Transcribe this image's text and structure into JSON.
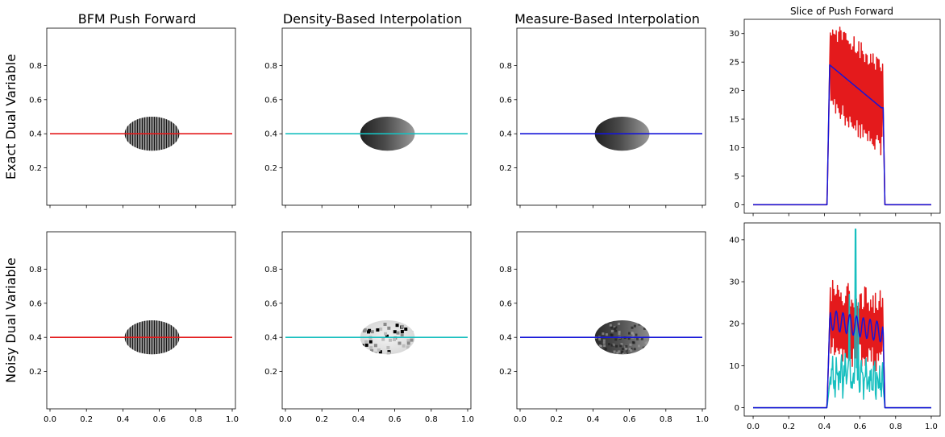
{
  "column_titles": [
    "BFM Push Forward",
    "Density-Based Interpolation",
    "Measure-Based Interpolation",
    "Slice of Push Forward"
  ],
  "row_labels": [
    "Exact Dual Variable",
    "Noisy Dual Variable"
  ],
  "colors": {
    "red": "#e41a1c",
    "cyan": "#17bfbf",
    "blue": "#1515d8"
  },
  "chart_data": [
    {
      "type": "heatmap",
      "title": "BFM Push Forward",
      "row": "Exact Dual Variable",
      "image": "ellipse with dense vertical stripes",
      "xlim": [
        0,
        1
      ],
      "ylim": [
        0,
        1
      ],
      "yticks": [
        "0.2",
        "0.4",
        "0.6",
        "0.8"
      ],
      "line": {
        "color": "red",
        "x": [
          0,
          1
        ],
        "y": [
          0.4,
          0.4
        ]
      }
    },
    {
      "type": "heatmap",
      "title": "Density-Based Interpolation",
      "row": "Exact Dual Variable",
      "image": "smooth gradient ellipse",
      "xlim": [
        0,
        1
      ],
      "ylim": [
        0,
        1
      ],
      "yticks": [
        "0.2",
        "0.4",
        "0.6",
        "0.8"
      ],
      "line": {
        "color": "cyan",
        "x": [
          0,
          1
        ],
        "y": [
          0.4,
          0.4
        ]
      }
    },
    {
      "type": "heatmap",
      "title": "Measure-Based Interpolation",
      "row": "Exact Dual Variable",
      "image": "smooth gradient ellipse",
      "xlim": [
        0,
        1
      ],
      "ylim": [
        0,
        1
      ],
      "yticks": [
        "0.2",
        "0.4",
        "0.6",
        "0.8"
      ],
      "line": {
        "color": "blue",
        "x": [
          0,
          1
        ],
        "y": [
          0.4,
          0.4
        ]
      }
    },
    {
      "type": "line",
      "title": "Slice of Push Forward",
      "row": "Exact Dual Variable",
      "xlim": [
        -0.05,
        1.05
      ],
      "ylim": [
        -1.5,
        32.5
      ],
      "yticks": [
        0,
        5,
        10,
        15,
        20,
        25,
        30
      ],
      "series": [
        {
          "color": "red",
          "kind": "oscillating",
          "envelope_x": [
            0,
            0.415,
            0.43,
            0.72,
            0.73,
            0.74,
            1
          ],
          "envelope_y": [
            0,
            0,
            24.5,
            17,
            17,
            0,
            0
          ]
        },
        {
          "color": "blue",
          "x": [
            0,
            0.415,
            0.43,
            0.72,
            0.73,
            0.74,
            1
          ],
          "y": [
            0,
            0,
            24.5,
            17,
            17,
            0,
            0
          ]
        }
      ]
    },
    {
      "type": "heatmap",
      "title": "BFM Push Forward",
      "row": "Noisy Dual Variable",
      "image": "ellipse with dense vertical stripes",
      "xlim": [
        0,
        1
      ],
      "ylim": [
        0,
        1
      ],
      "xticks": [
        "0.0",
        "0.2",
        "0.4",
        "0.6",
        "0.8",
        "1.0"
      ],
      "yticks": [
        "0.2",
        "0.4",
        "0.6",
        "0.8"
      ],
      "line": {
        "color": "red",
        "x": [
          0,
          1
        ],
        "y": [
          0.4,
          0.4
        ]
      }
    },
    {
      "type": "heatmap",
      "title": "Density-Based Interpolation",
      "row": "Noisy Dual Variable",
      "image": "light speckled ellipse with dark patches",
      "xlim": [
        0,
        1
      ],
      "ylim": [
        0,
        1
      ],
      "xticks": [
        "0.0",
        "0.2",
        "0.4",
        "0.6",
        "0.8",
        "1.0"
      ],
      "yticks": [
        "0.2",
        "0.4",
        "0.6",
        "0.8"
      ],
      "line": {
        "color": "cyan",
        "x": [
          0,
          1
        ],
        "y": [
          0.4,
          0.4
        ]
      }
    },
    {
      "type": "heatmap",
      "title": "Measure-Based Interpolation",
      "row": "Noisy Dual Variable",
      "image": "textured gray ellipse",
      "xlim": [
        0,
        1
      ],
      "ylim": [
        0,
        1
      ],
      "xticks": [
        "0.0",
        "0.2",
        "0.4",
        "0.6",
        "0.8",
        "1.0"
      ],
      "yticks": [
        "0.2",
        "0.4",
        "0.6",
        "0.8"
      ],
      "line": {
        "color": "blue",
        "x": [
          0,
          1
        ],
        "y": [
          0.4,
          0.4
        ]
      }
    },
    {
      "type": "line",
      "title": "Slice of Push Forward",
      "row": "Noisy Dual Variable",
      "xlim": [
        -0.05,
        1.05
      ],
      "ylim": [
        -2,
        44
      ],
      "xticks": [
        "0.0",
        "0.2",
        "0.4",
        "0.6",
        "0.8",
        "1.0"
      ],
      "yticks": [
        0,
        10,
        20,
        30,
        40
      ],
      "series": [
        {
          "color": "red",
          "kind": "oscillating",
          "envelope_x": [
            0,
            0.415,
            0.43,
            0.72,
            0.73,
            0.74,
            1
          ],
          "envelope_y": [
            0,
            0,
            21,
            18,
            18,
            0,
            0
          ]
        },
        {
          "color": "cyan",
          "kind": "noisy",
          "envelope_x": [
            0,
            0.415,
            0.43,
            0.72,
            0.73,
            0.74,
            1
          ],
          "envelope_y": [
            0,
            0,
            6,
            5,
            5,
            0,
            0
          ],
          "peak_x": 0.575,
          "peak_y": 42.5
        },
        {
          "color": "blue",
          "kind": "wavy",
          "envelope_x": [
            0,
            0.415,
            0.43,
            0.72,
            0.73,
            0.74,
            1
          ],
          "envelope_y": [
            0,
            0,
            21,
            18,
            18,
            0,
            0
          ]
        }
      ]
    }
  ]
}
